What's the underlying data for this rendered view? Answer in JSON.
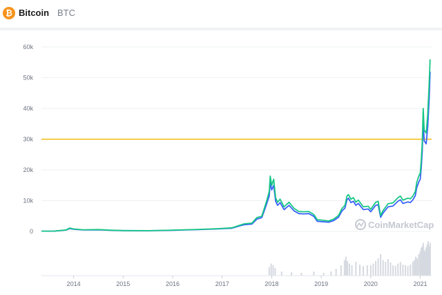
{
  "header": {
    "logo_glyph": "₿",
    "logo_icon": "bitcoin-icon",
    "name": "Bitcoin",
    "symbol": "BTC"
  },
  "watermark": "CoinMarketCap",
  "colors": {
    "logo": "#f7931a",
    "price_line": "#16c784",
    "marketcap_line": "#3861fb",
    "reference_line": "#f0b90b",
    "grid": "#eef0f3",
    "axis_text": "#6b7180",
    "volume": "#d5d9e0"
  },
  "chart_data": {
    "type": "line",
    "title": "",
    "xlabel": "",
    "ylabel": "",
    "ylim": [
      0,
      60000
    ],
    "yticks": [
      0,
      10000,
      20000,
      30000,
      40000,
      50000,
      60000
    ],
    "ytick_labels": [
      "0",
      "10k",
      "20k",
      "30k",
      "40k",
      "50k",
      "60k"
    ],
    "xlim": [
      2013.35,
      2021.23
    ],
    "xticks": [
      2014,
      2015,
      2016,
      2017,
      2018,
      2019,
      2020,
      2021
    ],
    "xtick_labels": [
      "2014",
      "2015",
      "2016",
      "2017",
      "2018",
      "2019",
      "2020",
      "2021"
    ],
    "grid": true,
    "reference_line": {
      "y": 30000
    },
    "series": [
      {
        "x": [
          2013.35,
          2013.6,
          2013.85,
          2013.92,
          2014.0,
          2014.2,
          2014.5,
          2014.8,
          2015.0,
          2015.5,
          2016.0,
          2016.5,
          2016.9,
          2017.0,
          2017.2,
          2017.35,
          2017.45,
          2017.6,
          2017.7,
          2017.8,
          2017.9,
          2017.95,
          2017.97,
          2018.0,
          2018.04,
          2018.08,
          2018.12,
          2018.17,
          2018.25,
          2018.35,
          2018.45,
          2018.55,
          2018.65,
          2018.75,
          2018.85,
          2018.92,
          2019.0,
          2019.15,
          2019.25,
          2019.35,
          2019.42,
          2019.48,
          2019.52,
          2019.55,
          2019.6,
          2019.65,
          2019.7,
          2019.75,
          2019.85,
          2019.95,
          2020.0,
          2020.1,
          2020.15,
          2020.2,
          2020.25,
          2020.35,
          2020.45,
          2020.55,
          2020.6,
          2020.65,
          2020.75,
          2020.8,
          2020.85,
          2020.9,
          2020.93,
          2020.97,
          2021.0,
          2021.02,
          2021.04,
          2021.06,
          2021.08,
          2021.12,
          2021.15,
          2021.18,
          2021.2
        ],
        "values": [
          100,
          110,
          500,
          1100,
          800,
          550,
          600,
          380,
          300,
          250,
          430,
          650,
          900,
          1000,
          1200,
          2000,
          2500,
          2700,
          4500,
          5000,
          10000,
          13000,
          18000,
          15000,
          17000,
          11000,
          9500,
          10500,
          8000,
          9500,
          7500,
          6500,
          6400,
          6500,
          5500,
          3800,
          3700,
          3400,
          4000,
          5200,
          7500,
          8500,
          11500,
          12000,
          10500,
          11000,
          9500,
          10200,
          8000,
          8200,
          7200,
          9500,
          9800,
          5200,
          6800,
          9000,
          9300,
          11000,
          11500,
          10200,
          10800,
          10600,
          11500,
          13000,
          16000,
          18000,
          19000,
          23000,
          29000,
          40000,
          33000,
          32000,
          38000,
          48000,
          56000
        ]
      },
      {
        "x": [
          2013.35,
          2013.6,
          2013.85,
          2013.92,
          2014.0,
          2014.2,
          2014.5,
          2014.8,
          2015.0,
          2015.5,
          2016.0,
          2016.5,
          2016.9,
          2017.0,
          2017.2,
          2017.35,
          2017.45,
          2017.6,
          2017.7,
          2017.8,
          2017.9,
          2017.95,
          2017.97,
          2018.0,
          2018.04,
          2018.08,
          2018.12,
          2018.17,
          2018.25,
          2018.35,
          2018.45,
          2018.55,
          2018.65,
          2018.75,
          2018.85,
          2018.92,
          2019.0,
          2019.15,
          2019.25,
          2019.35,
          2019.42,
          2019.48,
          2019.52,
          2019.55,
          2019.6,
          2019.65,
          2019.7,
          2019.75,
          2019.85,
          2019.95,
          2020.0,
          2020.1,
          2020.15,
          2020.2,
          2020.25,
          2020.35,
          2020.45,
          2020.55,
          2020.6,
          2020.65,
          2020.75,
          2020.8,
          2020.85,
          2020.9,
          2020.93,
          2020.97,
          2021.0,
          2021.02,
          2021.04,
          2021.06,
          2021.08,
          2021.12,
          2021.15,
          2021.18,
          2021.2
        ],
        "values": [
          80,
          90,
          450,
          950,
          700,
          480,
          520,
          330,
          260,
          220,
          380,
          580,
          800,
          900,
          1050,
          1800,
          2200,
          2400,
          4000,
          4500,
          9000,
          11500,
          16000,
          13500,
          15000,
          9800,
          8500,
          9400,
          7100,
          8500,
          6700,
          5800,
          5700,
          5800,
          4900,
          3300,
          3200,
          3000,
          3500,
          4600,
          6700,
          7600,
          10300,
          10800,
          9400,
          9800,
          8500,
          9100,
          7100,
          7300,
          6400,
          8500,
          8700,
          4600,
          6000,
          8000,
          8300,
          9800,
          10300,
          9100,
          9600,
          9400,
          10300,
          11600,
          14300,
          16100,
          17000,
          20500,
          26000,
          36000,
          29500,
          28500,
          34000,
          43000,
          52000
        ]
      }
    ],
    "volume": [
      {
        "x": 2017.95,
        "v": 0.25
      },
      {
        "x": 2017.99,
        "v": 0.35
      },
      {
        "x": 2018.03,
        "v": 0.3
      },
      {
        "x": 2018.07,
        "v": 0.22
      },
      {
        "x": 2018.2,
        "v": 0.12
      },
      {
        "x": 2018.4,
        "v": 0.1
      },
      {
        "x": 2018.6,
        "v": 0.08
      },
      {
        "x": 2018.85,
        "v": 0.12
      },
      {
        "x": 2019.05,
        "v": 0.08
      },
      {
        "x": 2019.2,
        "v": 0.12
      },
      {
        "x": 2019.3,
        "v": 0.2
      },
      {
        "x": 2019.4,
        "v": 0.3
      },
      {
        "x": 2019.47,
        "v": 0.45
      },
      {
        "x": 2019.5,
        "v": 0.55
      },
      {
        "x": 2019.53,
        "v": 0.42
      },
      {
        "x": 2019.57,
        "v": 0.35
      },
      {
        "x": 2019.62,
        "v": 0.3
      },
      {
        "x": 2019.7,
        "v": 0.4
      },
      {
        "x": 2019.78,
        "v": 0.32
      },
      {
        "x": 2019.85,
        "v": 0.28
      },
      {
        "x": 2019.93,
        "v": 0.3
      },
      {
        "x": 2020.0,
        "v": 0.3
      },
      {
        "x": 2020.05,
        "v": 0.35
      },
      {
        "x": 2020.1,
        "v": 0.42
      },
      {
        "x": 2020.15,
        "v": 0.5
      },
      {
        "x": 2020.2,
        "v": 0.62
      },
      {
        "x": 2020.25,
        "v": 0.45
      },
      {
        "x": 2020.3,
        "v": 0.4
      },
      {
        "x": 2020.35,
        "v": 0.48
      },
      {
        "x": 2020.4,
        "v": 0.38
      },
      {
        "x": 2020.45,
        "v": 0.3
      },
      {
        "x": 2020.5,
        "v": 0.28
      },
      {
        "x": 2020.55,
        "v": 0.35
      },
      {
        "x": 2020.6,
        "v": 0.4
      },
      {
        "x": 2020.65,
        "v": 0.32
      },
      {
        "x": 2020.7,
        "v": 0.3
      },
      {
        "x": 2020.75,
        "v": 0.28
      },
      {
        "x": 2020.8,
        "v": 0.32
      },
      {
        "x": 2020.85,
        "v": 0.4
      },
      {
        "x": 2020.88,
        "v": 0.45
      },
      {
        "x": 2020.91,
        "v": 0.55
      },
      {
        "x": 2020.94,
        "v": 0.5
      },
      {
        "x": 2020.97,
        "v": 0.62
      },
      {
        "x": 2021.0,
        "v": 0.7
      },
      {
        "x": 2021.02,
        "v": 0.8
      },
      {
        "x": 2021.04,
        "v": 0.85
      },
      {
        "x": 2021.06,
        "v": 0.95
      },
      {
        "x": 2021.08,
        "v": 0.75
      },
      {
        "x": 2021.1,
        "v": 0.7
      },
      {
        "x": 2021.12,
        "v": 0.82
      },
      {
        "x": 2021.14,
        "v": 0.9
      },
      {
        "x": 2021.16,
        "v": 1.0
      },
      {
        "x": 2021.18,
        "v": 0.85
      },
      {
        "x": 2021.2,
        "v": 0.95
      }
    ]
  }
}
